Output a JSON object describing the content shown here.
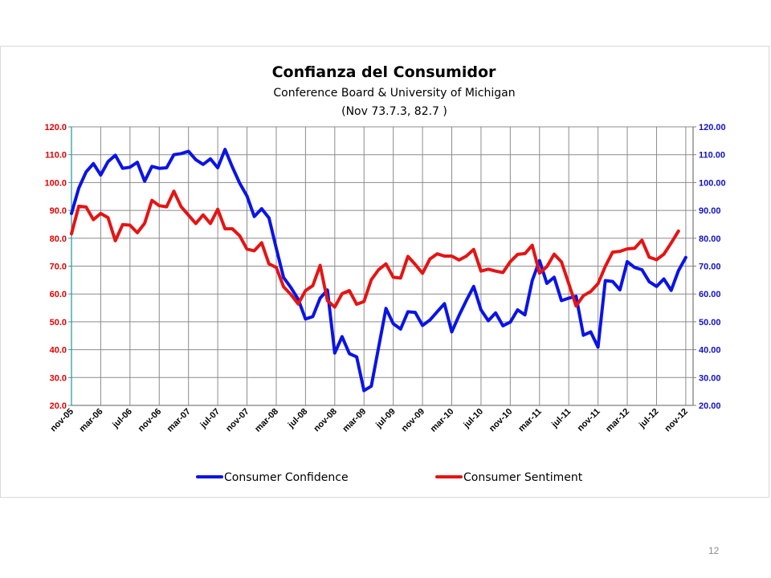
{
  "page_number": "12",
  "chart_data": {
    "type": "line",
    "title": "Confianza del Consumidor",
    "subtitle_lines": [
      "Conference Board &  University of Michigan",
      "(Nov 73.7.3, 82.7 )"
    ],
    "x_tick_labels": [
      "nov-05",
      "mar-06",
      "jul-06",
      "nov-06",
      "mar-07",
      "jul-07",
      "nov-07",
      "mar-08",
      "jul-08",
      "nov-08",
      "mar-09",
      "jul-09",
      "nov-09",
      "mar-10",
      "jul-10",
      "nov-10",
      "mar-11",
      "jul-11",
      "nov-11",
      "mar-12",
      "jul-12",
      "nov-12"
    ],
    "y_left": {
      "min": 20,
      "max": 120,
      "step": 10,
      "tick_labels": [
        "20.0",
        "30.0",
        "40.0",
        "50.0",
        "60.0",
        "70.0",
        "80.0",
        "90.0",
        "100.0",
        "110.0",
        "120.0"
      ],
      "color": "#e00000"
    },
    "y_right": {
      "min": 20,
      "max": 120,
      "step": 10,
      "tick_labels": [
        "20.00",
        "30.00",
        "40.00",
        "50.00",
        "60.00",
        "70.00",
        "80.00",
        "90.00",
        "100.00",
        "110.00",
        "120.00"
      ],
      "color": "#1010c8"
    },
    "grid": true,
    "legend_position": "bottom",
    "series": [
      {
        "name": "Consumer Confidence",
        "color": "#0a14e6",
        "axis": "right",
        "values": [
          88.9,
          98.0,
          103.8,
          106.8,
          102.7,
          107.5,
          109.8,
          105.1,
          105.5,
          107.3,
          100.5,
          105.8,
          105.1,
          105.3,
          110.0,
          110.4,
          111.2,
          108.2,
          106.5,
          108.5,
          105.3,
          111.9,
          105.6,
          99.8,
          95.2,
          87.8,
          90.6,
          87.3,
          76.4,
          65.9,
          62.3,
          58.1,
          51.0,
          51.9,
          58.5,
          61.4,
          38.8,
          44.7,
          38.6,
          37.4,
          25.3,
          26.9,
          40.8,
          54.8,
          49.3,
          47.4,
          53.6,
          53.4,
          48.7,
          50.6,
          53.6,
          56.5,
          46.4,
          52.3,
          57.7,
          62.7,
          54.3,
          50.4,
          53.2,
          48.6,
          49.9,
          54.3,
          52.5,
          64.8,
          72.0,
          63.8,
          66.0,
          57.6,
          58.5,
          59.2,
          45.2,
          46.4,
          40.9,
          64.8,
          64.5,
          61.5,
          71.6,
          69.5,
          68.7,
          64.4,
          62.7,
          65.4,
          61.3,
          68.4,
          73.1
        ],
        "series_note_skip": true
      },
      {
        "name": "Consumer Sentiment",
        "color": "#e51414",
        "axis": "left",
        "values": [
          81.6,
          91.5,
          91.2,
          86.7,
          88.9,
          87.4,
          79.1,
          84.9,
          84.7,
          82.0,
          85.4,
          93.6,
          91.7,
          91.3,
          96.9,
          91.3,
          88.3,
          85.3,
          88.4,
          85.3,
          90.4,
          83.4,
          83.4,
          80.9,
          76.1,
          75.5,
          78.4,
          70.8,
          69.5,
          62.6,
          59.8,
          56.4,
          61.2,
          63.0,
          70.3,
          57.6,
          55.3,
          60.1,
          61.2,
          56.3,
          57.3,
          65.1,
          68.7,
          70.8,
          66.0,
          65.7,
          73.5,
          70.6,
          67.4,
          72.5,
          74.4,
          73.6,
          73.6,
          72.2,
          73.6,
          76.0,
          68.2,
          68.9,
          68.2,
          67.7,
          71.6,
          74.2,
          74.5,
          77.5,
          67.5,
          69.8,
          74.3,
          71.5,
          63.7,
          55.7,
          59.4,
          60.9,
          63.7,
          69.9,
          75.0,
          75.3,
          76.2,
          76.4,
          79.3,
          73.2,
          72.3,
          74.3,
          78.3,
          82.6
        ],
        "series_note_skip": true
      }
    ]
  }
}
